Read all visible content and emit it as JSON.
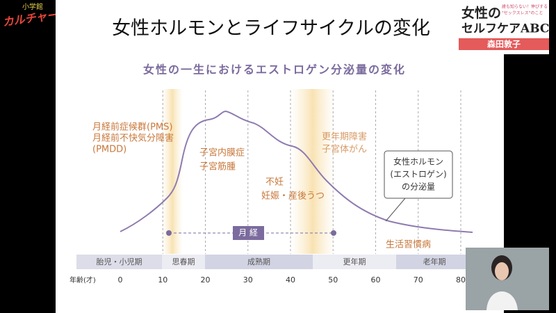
{
  "logo": {
    "small": "小学館",
    "main": "カルチャーライブ!"
  },
  "book": {
    "title_1": "女性の",
    "title_2": "セルフケアABC",
    "tagline_1": "誰も知らない！伸びする",
    "tagline_2": "\"セックスレス\"のこと",
    "author": "森田敦子"
  },
  "slide": {
    "title": "女性ホルモンとライフサイクルの変化",
    "subtitle": "女性の一生におけるエストロゲン分泌量の変化",
    "annotations": {
      "pms_1": "月経前症候群(PMS)",
      "pms_2": "月経前不快気分障害",
      "pms_3": "(PMDD)",
      "uterus_1": "子宮内膜症",
      "uterus_2": "子宮筋腫",
      "infertility_1": "不妊",
      "infertility_2": "妊娠・産後うつ",
      "menopause_1": "更年期障害",
      "menopause_2": "子宮体がん",
      "lifestyle": "生活習慣病"
    },
    "legend_box": {
      "line_1": "女性ホルモン",
      "line_2": "(エストロゲン)",
      "line_3": "の分泌量"
    },
    "menstruation": "月 経",
    "stages": [
      "胎児・小児期",
      "思春期",
      "成熟期",
      "更年期",
      "老年期"
    ],
    "age_label": "年齢(才)",
    "ages": [
      0,
      10,
      20,
      30,
      40,
      50,
      60,
      70,
      80
    ]
  }
}
